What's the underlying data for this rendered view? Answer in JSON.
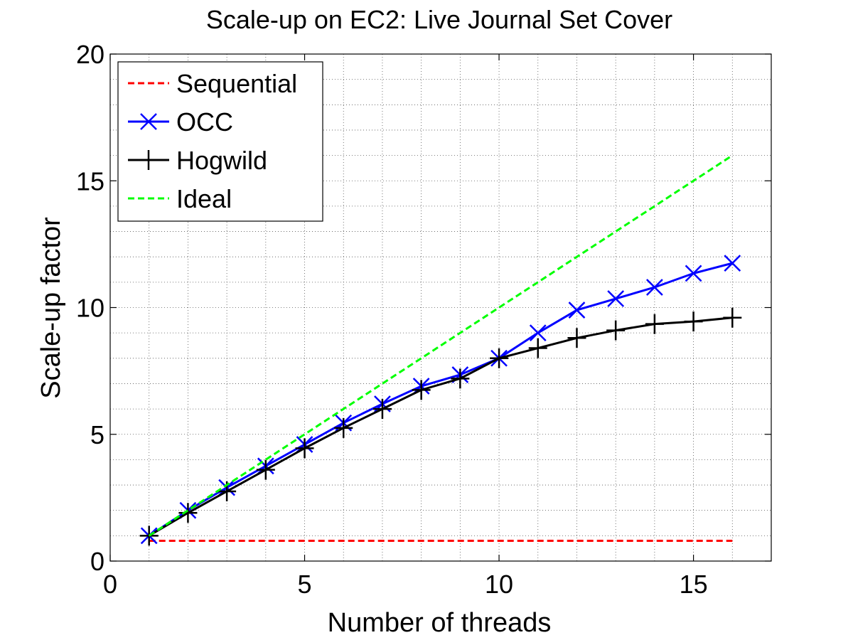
{
  "chart_data": {
    "type": "line",
    "title": "Scale-up on EC2: Live Journal Set Cover",
    "xlabel": "Number of threads",
    "ylabel": "Scale-up factor",
    "xlim": [
      0,
      17
    ],
    "ylim": [
      0,
      20
    ],
    "xticks": [
      0,
      5,
      10,
      15
    ],
    "yticks": [
      0,
      5,
      10,
      15,
      20
    ],
    "grid": true,
    "grid_style": "dotted",
    "legend_position": "top-left",
    "series": [
      {
        "name": "Sequential",
        "color": "#ff0000",
        "line_style": "dashed",
        "marker": "none",
        "x": [
          1,
          16
        ],
        "y": [
          0.8,
          0.8
        ]
      },
      {
        "name": "OCC",
        "color": "#0000ff",
        "line_style": "solid",
        "marker": "x",
        "x": [
          1,
          2,
          3,
          4,
          5,
          6,
          7,
          8,
          9,
          10,
          11,
          12,
          13,
          14,
          15,
          16
        ],
        "y": [
          1.0,
          2.0,
          2.9,
          3.75,
          4.6,
          5.45,
          6.2,
          6.9,
          7.35,
          8.0,
          9.0,
          9.9,
          10.35,
          10.8,
          11.35,
          11.75
        ]
      },
      {
        "name": "Hogwild",
        "color": "#000000",
        "line_style": "solid",
        "marker": "+",
        "x": [
          1,
          2,
          3,
          4,
          5,
          6,
          7,
          8,
          9,
          10,
          11,
          12,
          13,
          14,
          15,
          16
        ],
        "y": [
          1.0,
          1.9,
          2.75,
          3.6,
          4.45,
          5.25,
          6.0,
          6.75,
          7.2,
          8.0,
          8.4,
          8.8,
          9.1,
          9.35,
          9.45,
          9.6
        ]
      },
      {
        "name": "Ideal",
        "color": "#00ff00",
        "line_style": "dashed",
        "marker": "none",
        "x": [
          1,
          16
        ],
        "y": [
          1,
          16
        ]
      }
    ]
  }
}
